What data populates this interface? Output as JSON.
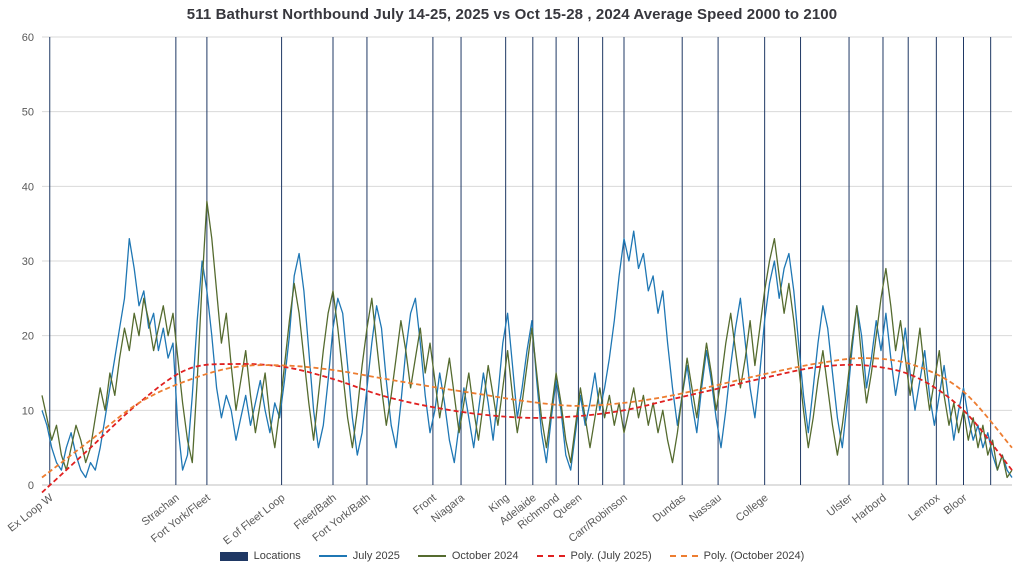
{
  "chart_data": {
    "type": "line",
    "title": "511 Bathurst Northbound July 14-25, 2025 vs Oct 15-28 , 2024 Average Speed 2000 to 2100",
    "xlabel": "",
    "ylabel": "",
    "ylim": [
      0,
      60
    ],
    "yticks": [
      0,
      10,
      20,
      30,
      40,
      50,
      60
    ],
    "grid": true,
    "legend_position": "bottom",
    "colors": {
      "location_line": "#1f3864",
      "july": "#1f77b4",
      "october": "#556b2f",
      "poly_july": "#e02020",
      "poly_october": "#ed7d31",
      "gridline": "#d9d9d9",
      "axis": "#bfbfbf",
      "tick_text": "#595959"
    },
    "locations": [
      {
        "label": "Ex Loop W",
        "pos": 0.008
      },
      {
        "label": "Strachan",
        "pos": 0.138
      },
      {
        "label": "Fort York/Fleet",
        "pos": 0.17
      },
      {
        "label": "E of Fleet Loop",
        "pos": 0.247
      },
      {
        "label": "Fleet/Bath",
        "pos": 0.3
      },
      {
        "label": "Fort York/Bath",
        "pos": 0.335
      },
      {
        "label": "Front",
        "pos": 0.403
      },
      {
        "label": "Niagara",
        "pos": 0.432
      },
      {
        "label": "King",
        "pos": 0.478
      },
      {
        "label": "Adelaide",
        "pos": 0.506
      },
      {
        "label": "Richmond",
        "pos": 0.53
      },
      {
        "label": "Queen",
        "pos": 0.553
      },
      {
        "label": "Carr/Robinson",
        "pos": 0.6
      },
      {
        "label": "Dundas",
        "pos": 0.66
      },
      {
        "label": "Nassau",
        "pos": 0.697
      },
      {
        "label": "College",
        "pos": 0.745
      },
      {
        "label": "Ulster",
        "pos": 0.832
      },
      {
        "label": "Harbord",
        "pos": 0.867
      },
      {
        "label": "Lennox",
        "pos": 0.922
      },
      {
        "label": "Bloor",
        "pos": 0.95
      }
    ],
    "extra_location_lines": [
      0.578,
      0.782,
      0.893,
      0.978
    ],
    "series": [
      {
        "name": "July 2025",
        "color": "#1f77b4",
        "style": "solid",
        "values": [
          10,
          8,
          5,
          3,
          2,
          5,
          7,
          4,
          2,
          1,
          3,
          2,
          5,
          9,
          13,
          17,
          21,
          25,
          33,
          29,
          24,
          26,
          21,
          23,
          18,
          21,
          17,
          19,
          8,
          2,
          4,
          12,
          22,
          30,
          26,
          20,
          13,
          9,
          12,
          10,
          6,
          9,
          12,
          8,
          11,
          14,
          10,
          7,
          11,
          9,
          14,
          20,
          28,
          31,
          26,
          18,
          10,
          5,
          8,
          14,
          21,
          25,
          23,
          16,
          9,
          4,
          7,
          13,
          19,
          24,
          21,
          14,
          8,
          5,
          11,
          18,
          23,
          25,
          19,
          12,
          7,
          10,
          15,
          11,
          6,
          3,
          8,
          13,
          9,
          5,
          10,
          15,
          11,
          6,
          12,
          19,
          23,
          16,
          9,
          13,
          18,
          22,
          14,
          7,
          3,
          9,
          14,
          10,
          4,
          2,
          7,
          12,
          8,
          11,
          15,
          10,
          13,
          17,
          22,
          28,
          33,
          30,
          34,
          29,
          31,
          26,
          28,
          23,
          26,
          19,
          13,
          8,
          12,
          16,
          11,
          7,
          13,
          18,
          14,
          9,
          5,
          10,
          16,
          21,
          25,
          19,
          13,
          9,
          15,
          22,
          27,
          30,
          25,
          29,
          31,
          26,
          19,
          12,
          7,
          13,
          19,
          24,
          21,
          15,
          9,
          5,
          11,
          18,
          24,
          20,
          13,
          17,
          22,
          18,
          23,
          17,
          12,
          16,
          21,
          15,
          10,
          14,
          18,
          12,
          8,
          12,
          16,
          11,
          6,
          10,
          13,
          9,
          6,
          8,
          5,
          7,
          4,
          2,
          4,
          2,
          1
        ]
      },
      {
        "name": "October 2024",
        "color": "#556b2f",
        "style": "solid",
        "values": [
          12,
          9,
          6,
          8,
          4,
          2,
          5,
          8,
          6,
          3,
          5,
          9,
          13,
          10,
          15,
          12,
          17,
          21,
          18,
          23,
          20,
          25,
          22,
          18,
          21,
          24,
          20,
          23,
          17,
          11,
          6,
          3,
          14,
          27,
          38,
          33,
          26,
          19,
          23,
          16,
          10,
          14,
          18,
          12,
          7,
          11,
          15,
          9,
          5,
          10,
          16,
          22,
          27,
          23,
          17,
          11,
          6,
          12,
          18,
          23,
          26,
          21,
          15,
          9,
          5,
          10,
          16,
          21,
          25,
          19,
          13,
          8,
          12,
          17,
          22,
          18,
          13,
          17,
          21,
          15,
          19,
          14,
          9,
          13,
          17,
          12,
          7,
          11,
          15,
          10,
          6,
          11,
          16,
          12,
          8,
          13,
          18,
          12,
          7,
          11,
          16,
          21,
          15,
          9,
          5,
          10,
          15,
          11,
          6,
          3,
          8,
          13,
          9,
          5,
          9,
          13,
          9,
          12,
          8,
          11,
          7,
          10,
          13,
          9,
          12,
          8,
          11,
          7,
          10,
          6,
          3,
          7,
          12,
          17,
          13,
          9,
          14,
          19,
          15,
          10,
          14,
          19,
          23,
          18,
          13,
          17,
          22,
          16,
          21,
          26,
          30,
          33,
          28,
          23,
          27,
          22,
          16,
          10,
          5,
          9,
          14,
          18,
          13,
          8,
          4,
          8,
          13,
          19,
          24,
          17,
          11,
          15,
          20,
          25,
          29,
          24,
          18,
          22,
          17,
          12,
          16,
          21,
          15,
          10,
          14,
          18,
          12,
          8,
          11,
          7,
          10,
          6,
          9,
          5,
          8,
          4,
          6,
          2,
          4,
          1,
          2
        ]
      }
    ],
    "trendlines": [
      {
        "name": "Poly. (July 2025)",
        "color": "#e02020",
        "style": "dashed",
        "x": [
          0,
          0.05,
          0.1,
          0.15,
          0.2,
          0.25,
          0.3,
          0.35,
          0.4,
          0.45,
          0.5,
          0.55,
          0.6,
          0.65,
          0.7,
          0.75,
          0.8,
          0.85,
          0.9,
          0.95,
          1
        ],
        "values": [
          -1,
          5,
          11,
          15.5,
          16.2,
          15.8,
          14.2,
          12,
          10.5,
          9.5,
          9,
          9.2,
          10,
          11.5,
          13,
          14.5,
          15.8,
          16,
          14.5,
          10,
          2
        ]
      },
      {
        "name": "Poly. (October 2024)",
        "color": "#ed7d31",
        "style": "dashed",
        "x": [
          0,
          0.05,
          0.1,
          0.15,
          0.2,
          0.25,
          0.3,
          0.35,
          0.4,
          0.45,
          0.5,
          0.55,
          0.6,
          0.65,
          0.7,
          0.75,
          0.8,
          0.85,
          0.9,
          0.95,
          1
        ],
        "values": [
          1,
          6,
          11,
          14,
          15.8,
          16,
          15.4,
          14.3,
          13.2,
          12.2,
          11.2,
          10.6,
          11,
          12,
          13.5,
          15,
          16.3,
          17,
          16,
          12.5,
          5
        ]
      }
    ],
    "legend": [
      {
        "label": "Locations",
        "swatch": "box",
        "color": "#1f3864"
      },
      {
        "label": "July 2025",
        "swatch": "line",
        "color": "#1f77b4"
      },
      {
        "label": "October 2024",
        "swatch": "line",
        "color": "#556b2f"
      },
      {
        "label": "Poly. (July 2025)",
        "swatch": "dash",
        "color": "#e02020"
      },
      {
        "label": "Poly. (October 2024)",
        "swatch": "dash",
        "color": "#ed7d31"
      }
    ]
  }
}
